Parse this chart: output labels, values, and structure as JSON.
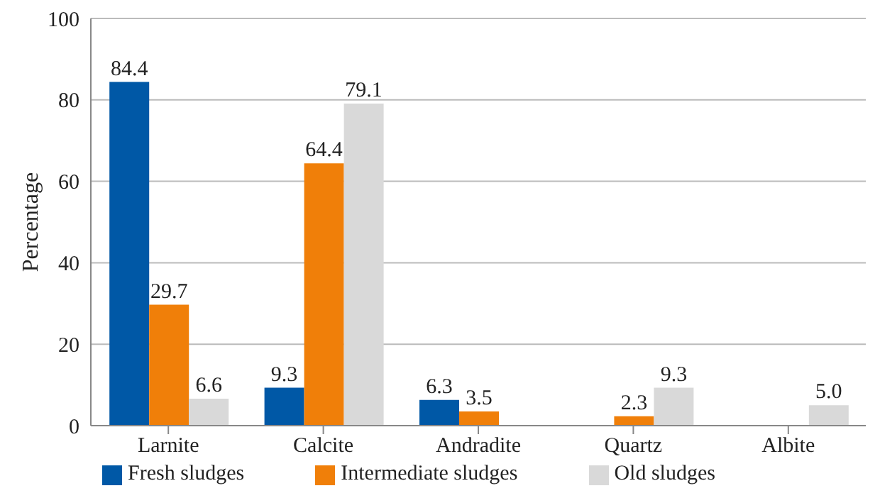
{
  "chart_data": {
    "type": "bar",
    "ylabel": "Percentage",
    "categories": [
      "Larnite",
      "Calcite",
      "Andradite",
      "Quartz",
      "Albite"
    ],
    "series": [
      {
        "name": "Fresh sludges",
        "color": "#0058a6",
        "values": [
          84.4,
          9.3,
          6.3,
          null,
          null
        ],
        "value_labels": [
          "84.4",
          "9.3",
          "6.3",
          null,
          null
        ]
      },
      {
        "name": "Intermediate sludges",
        "color": "#f07f09",
        "values": [
          29.7,
          64.4,
          3.5,
          2.3,
          null
        ],
        "value_labels": [
          "29.7",
          "64.4",
          "3.5",
          "2.3",
          null
        ]
      },
      {
        "name": "Old sludges",
        "color": "#d9d9d9",
        "values": [
          6.6,
          79.1,
          null,
          9.3,
          5.0
        ],
        "value_labels": [
          "6.6",
          "79.1",
          null,
          "9.3",
          "5.0"
        ]
      }
    ],
    "ylim": [
      0,
      100
    ],
    "yticks": [
      0,
      20,
      40,
      60,
      80,
      100
    ],
    "grid": "y",
    "legend": "bottom"
  }
}
